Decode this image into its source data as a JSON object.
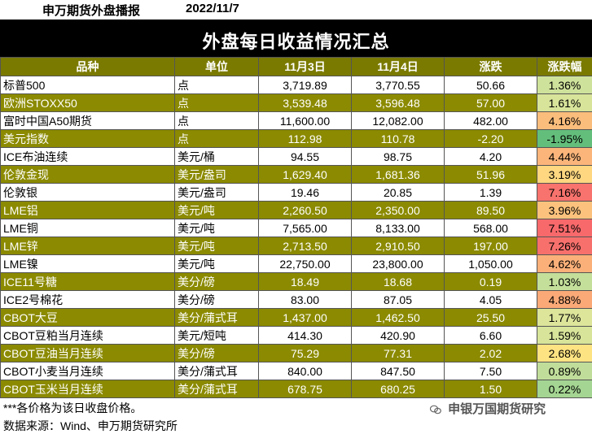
{
  "header": {
    "brand": "申万期货外盘播报",
    "date": "2022/11/7"
  },
  "title": "外盘每日收益情况汇总",
  "columns": [
    "品种",
    "单位",
    "11月3日",
    "11月4日",
    "涨跌",
    "涨跌幅"
  ],
  "rows": [
    {
      "name": "标普500",
      "unit": "点",
      "d1": "3,719.89",
      "d2": "3,770.55",
      "chg": "50.66",
      "pct": "1.36%",
      "pct_color": "#cfe29b",
      "style": "white"
    },
    {
      "name": "欧洲STOXX50",
      "unit": "点",
      "d1": "3,539.48",
      "d2": "3,596.48",
      "chg": "57.00",
      "pct": "1.61%",
      "pct_color": "#d8e49a",
      "style": "olive"
    },
    {
      "name": "富时中国A50期货",
      "unit": "点",
      "d1": "11,600.00",
      "d2": "12,082.00",
      "chg": "482.00",
      "pct": "4.16%",
      "pct_color": "#fbbd7c",
      "style": "white"
    },
    {
      "name": "美元指数",
      "unit": "点",
      "d1": "112.98",
      "d2": "110.78",
      "chg": "-2.20",
      "pct": "-1.95%",
      "pct_color": "#63be7b",
      "style": "olive"
    },
    {
      "name": "ICE布油连续",
      "unit": "美元/桶",
      "d1": "94.55",
      "d2": "98.75",
      "chg": "4.20",
      "pct": "4.44%",
      "pct_color": "#fbb57a",
      "style": "white"
    },
    {
      "name": "伦敦金现",
      "unit": "美元/盎司",
      "d1": "1,629.40",
      "d2": "1,681.36",
      "chg": "51.96",
      "pct": "3.19%",
      "pct_color": "#fed780",
      "style": "olive"
    },
    {
      "name": "伦敦银",
      "unit": "美元/盎司",
      "d1": "19.46",
      "d2": "20.85",
      "chg": "1.39",
      "pct": "7.16%",
      "pct_color": "#f8736d",
      "style": "white"
    },
    {
      "name": "LME铝",
      "unit": "美元/吨",
      "d1": "2,260.50",
      "d2": "2,350.00",
      "chg": "89.50",
      "pct": "3.96%",
      "pct_color": "#fcc27d",
      "style": "olive"
    },
    {
      "name": "LME铜",
      "unit": "美元/吨",
      "d1": "7,565.00",
      "d2": "8,133.00",
      "chg": "568.00",
      "pct": "7.51%",
      "pct_color": "#f8696b",
      "style": "white"
    },
    {
      "name": "LME锌",
      "unit": "美元/吨",
      "d1": "2,713.50",
      "d2": "2,910.50",
      "chg": "197.00",
      "pct": "7.26%",
      "pct_color": "#f8706c",
      "style": "olive"
    },
    {
      "name": "LME镍",
      "unit": "美元/吨",
      "d1": "22,750.00",
      "d2": "23,800.00",
      "chg": "1,050.00",
      "pct": "4.62%",
      "pct_color": "#fbb079",
      "style": "white"
    },
    {
      "name": "ICE11号糖",
      "unit": "美分/磅",
      "d1": "18.49",
      "d2": "18.68",
      "chg": "0.19",
      "pct": "1.03%",
      "pct_color": "#c4df9a",
      "style": "olive"
    },
    {
      "name": "ICE2号棉花",
      "unit": "美分/磅",
      "d1": "83.00",
      "d2": "87.05",
      "chg": "4.05",
      "pct": "4.88%",
      "pct_color": "#faa977",
      "style": "white"
    },
    {
      "name": "CBOT大豆",
      "unit": "美分/蒲式耳",
      "d1": "1,437.00",
      "d2": "1,462.50",
      "chg": "25.50",
      "pct": "1.77%",
      "pct_color": "#dde59b",
      "style": "olive"
    },
    {
      "name": "CBOT豆粕当月连续",
      "unit": "美元/短吨",
      "d1": "414.30",
      "d2": "420.90",
      "chg": "6.60",
      "pct": "1.59%",
      "pct_color": "#d7e49a",
      "style": "white"
    },
    {
      "name": "CBOT豆油当月连续",
      "unit": "美分/磅",
      "d1": "75.29",
      "d2": "77.31",
      "chg": "2.02",
      "pct": "2.68%",
      "pct_color": "#fee382",
      "style": "olive"
    },
    {
      "name": "CBOT小麦当月连续",
      "unit": "美分/蒲式耳",
      "d1": "840.00",
      "d2": "847.50",
      "chg": "7.50",
      "pct": "0.89%",
      "pct_color": "#c0dd9a",
      "style": "white"
    },
    {
      "name": "CBOT玉米当月连续",
      "unit": "美分/蒲式耳",
      "d1": "678.75",
      "d2": "680.25",
      "chg": "1.50",
      "pct": "0.22%",
      "pct_color": "#a4d592",
      "style": "olive"
    }
  ],
  "footer": {
    "note": "***各价格为该日收盘价格。",
    "source": "数据来源：Wind、申万期货研究所"
  },
  "watermark": "申银万国期货研究",
  "watermark_icon": "wechat-icon"
}
